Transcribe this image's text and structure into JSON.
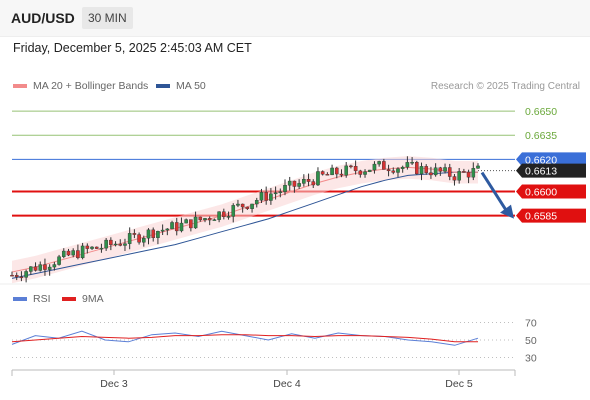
{
  "header": {
    "symbol": "AUD/USD",
    "timeframe": "30 MIN"
  },
  "datetime": "Friday, December 5, 2025 2:45:03 AM CET",
  "legend_main": [
    {
      "label": "MA 20 + Bollinger Bands",
      "color": "#f28b8b"
    },
    {
      "label": "MA 50",
      "color": "#2e5596"
    }
  ],
  "credit": "Research © 2025 Trading Central",
  "legend_rsi": [
    {
      "label": "RSI",
      "color": "#5b7fd6"
    },
    {
      "label": "9MA",
      "color": "#e02020"
    }
  ],
  "chart_data": {
    "type": "line",
    "x_ticks": [
      "Dec 3",
      "Dec 4",
      "Dec 5"
    ],
    "ylim": [
      0.6545,
      0.666
    ],
    "levels": [
      {
        "label": "0.6650",
        "value": 0.665,
        "color": "#6aa83a",
        "kind": "target"
      },
      {
        "label": "0.6635",
        "value": 0.6635,
        "color": "#6aa83a",
        "kind": "target"
      },
      {
        "label": "0.6620",
        "value": 0.662,
        "color": "#3a6fd8",
        "kind": "pivot"
      },
      {
        "label": "0.6613",
        "value": 0.6613,
        "color": "#222222",
        "kind": "last-price"
      },
      {
        "label": "0.6600",
        "value": 0.66,
        "color": "#e01010",
        "kind": "support"
      },
      {
        "label": "0.6585",
        "value": 0.6585,
        "color": "#e01010",
        "kind": "support"
      }
    ],
    "price_series": {
      "name": "AUD/USD",
      "x": [
        0,
        5,
        10,
        15,
        20,
        25,
        30,
        35,
        40,
        45,
        50,
        55,
        60,
        65,
        70,
        75,
        80,
        85,
        90,
        95,
        100
      ],
      "values": [
        0.6548,
        0.6553,
        0.6558,
        0.6563,
        0.6566,
        0.657,
        0.6575,
        0.6578,
        0.6582,
        0.6587,
        0.6592,
        0.6598,
        0.6603,
        0.6608,
        0.6612,
        0.6614,
        0.6616,
        0.6615,
        0.6613,
        0.661,
        0.6613
      ]
    },
    "ma20": [
      0.655,
      0.6553,
      0.6557,
      0.6561,
      0.6565,
      0.6569,
      0.6573,
      0.6577,
      0.6581,
      0.6585,
      0.659,
      0.6595,
      0.66,
      0.6605,
      0.6609,
      0.6612,
      0.6614,
      0.6615,
      0.6614,
      0.6612,
      0.6612
    ],
    "ma50": [
      0.6546,
      0.6549,
      0.6552,
      0.6555,
      0.6558,
      0.6561,
      0.6564,
      0.6567,
      0.6571,
      0.6575,
      0.6579,
      0.6583,
      0.6588,
      0.6593,
      0.6598,
      0.6603,
      0.6607,
      0.661,
      0.6611,
      0.6612,
      0.6612
    ],
    "rsi_levels": [
      "70",
      "50",
      "30"
    ],
    "rsi": [
      45,
      55,
      52,
      60,
      50,
      48,
      56,
      58,
      54,
      60,
      55,
      50,
      57,
      52,
      58,
      55,
      54,
      50,
      48,
      44,
      52
    ],
    "rsi_ma": [
      48,
      50,
      52,
      54,
      53,
      52,
      53,
      55,
      55,
      56,
      56,
      55,
      55,
      54,
      55,
      55,
      54,
      53,
      51,
      48,
      48
    ]
  }
}
